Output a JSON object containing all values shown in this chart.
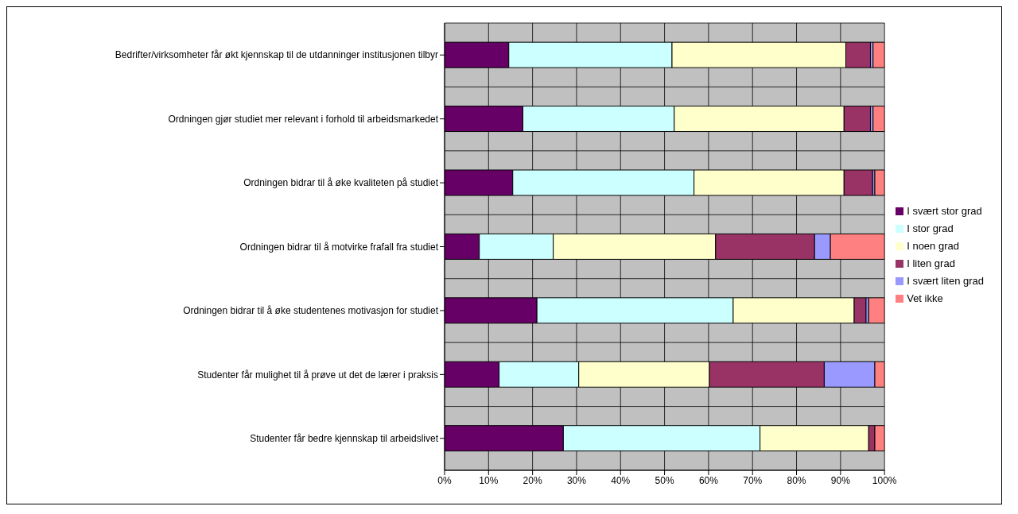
{
  "chart_data": {
    "type": "bar",
    "orientation": "horizontal",
    "stacked": true,
    "categories": [
      "Bedrifter/virksomheter får økt kjennskap til de utdanninger institusjonen tilbyr",
      "Ordningen gjør studiet mer relevant i forhold til arbeidsmarkedet",
      "Ordningen bidrar til å øke kvaliteten på studiet",
      "Ordningen bidrar til å motvirke frafall fra studiet",
      "Ordningen bidrar til å øke studentenes motivasjon for studiet",
      "Studenter får mulighet til å prøve ut det de lærer i praksis",
      "Studenter får bedre kjennskap til arbeidslivet"
    ],
    "series": [
      {
        "name": "I svært stor grad",
        "color": "#660066",
        "values": [
          14.6,
          17.8,
          15.5,
          7.9,
          21.0,
          12.4,
          27.0
        ]
      },
      {
        "name": "I stor grad",
        "color": "#ccffff",
        "values": [
          37.1,
          34.4,
          41.2,
          16.8,
          44.6,
          18.1,
          44.7
        ]
      },
      {
        "name": "I noen grad",
        "color": "#ffffcc",
        "values": [
          39.5,
          38.6,
          34.1,
          36.9,
          27.5,
          29.7,
          24.7
        ]
      },
      {
        "name": "I liten grad",
        "color": "#993366",
        "values": [
          5.6,
          6.0,
          6.5,
          22.5,
          2.7,
          26.1,
          1.4
        ]
      },
      {
        "name": "I svært liten grad",
        "color": "#9999ff",
        "values": [
          0.6,
          0.6,
          0.5,
          3.6,
          0.6,
          11.5,
          0
        ]
      },
      {
        "name": "Vet ikke",
        "color": "#ff8080",
        "values": [
          2.6,
          2.6,
          2.2,
          12.3,
          3.6,
          2.2,
          2.2
        ]
      }
    ],
    "xlim": [
      0,
      100
    ],
    "xticks": [
      {
        "value": 0,
        "label": "0%"
      },
      {
        "value": 10,
        "label": "10%"
      },
      {
        "value": 20,
        "label": "20%"
      },
      {
        "value": 30,
        "label": "30%"
      },
      {
        "value": 40,
        "label": "40%"
      },
      {
        "value": 50,
        "label": "50%"
      },
      {
        "value": 60,
        "label": "60%"
      },
      {
        "value": 70,
        "label": "70%"
      },
      {
        "value": 80,
        "label": "80%"
      },
      {
        "value": 90,
        "label": "90%"
      },
      {
        "value": 100,
        "label": "100%"
      }
    ],
    "grid": true,
    "legend": "right"
  }
}
